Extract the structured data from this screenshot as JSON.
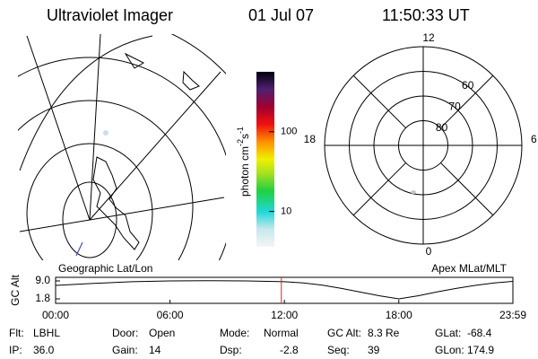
{
  "header": {
    "title": "Ultraviolet Imager",
    "date": "01 Jul 07",
    "time": "11:50:33 UT"
  },
  "maps": {
    "left": {
      "label": "Geographic Lat/Lon"
    },
    "right": {
      "label": "Apex MLat/MLT",
      "mlat_circles": [
        80,
        70,
        60,
        50
      ],
      "mlat_labels": [
        80,
        70,
        60
      ],
      "mlt_labels": [
        12,
        6,
        0,
        18
      ]
    }
  },
  "colorbar": {
    "label": {
      "text": "photon cm",
      "exp1": "-2",
      "unit2": "s",
      "exp2": "-1"
    },
    "log": true,
    "range": [
      3.6,
      565
    ],
    "ticks": [
      10,
      100
    ]
  },
  "chart_data": {
    "type": "line",
    "y_label": "GC Alt",
    "x": [
      0,
      2,
      4,
      6,
      8,
      10,
      12,
      13,
      14,
      15,
      16,
      17,
      18,
      19,
      20,
      21,
      22,
      23,
      23.983
    ],
    "series": [
      {
        "color": "#000000",
        "values": [
          7.2,
          8.0,
          8.7,
          9.0,
          9.1,
          9.0,
          8.7,
          8.2,
          7.3,
          6.0,
          4.5,
          3.0,
          1.8,
          3.0,
          4.6,
          6.0,
          7.2,
          8.2,
          8.8
        ]
      }
    ],
    "xlim": [
      0,
      23.983
    ],
    "ylim": [
      0,
      10.44
    ],
    "xticks": [
      {
        "value": 0,
        "label": "00:00"
      },
      {
        "value": 6,
        "label": "06:00"
      },
      {
        "value": 12,
        "label": "12:00"
      },
      {
        "value": 18,
        "label": "18:00"
      },
      {
        "value": 23.983,
        "label": "23:59"
      }
    ],
    "yticks": [
      {
        "value": 1.8,
        "label": "1.8"
      },
      {
        "value": 9.0,
        "label": "9.0"
      }
    ],
    "marker": {
      "x": 11.84,
      "color": "#dd2222"
    }
  },
  "footer": {
    "rows": [
      [
        {
          "label": "Flt:",
          "value": "LBHL"
        },
        {
          "label": "Door:",
          "value": "Open"
        },
        {
          "label": "Mode:",
          "value": "Normal"
        },
        {
          "label": "GC Alt:",
          "value": "8.3 Re"
        },
        {
          "label": "GLat:",
          "value": "-68.4"
        }
      ],
      [
        {
          "label": "IP:",
          "value": "36.0"
        },
        {
          "label": "Gain:",
          "value": "14"
        },
        {
          "label": "Dsp:",
          "value": "-2.8"
        },
        {
          "label": "Seq:",
          "value": "39"
        },
        {
          "label": "GLon:",
          "value": "174.9"
        }
      ]
    ]
  }
}
